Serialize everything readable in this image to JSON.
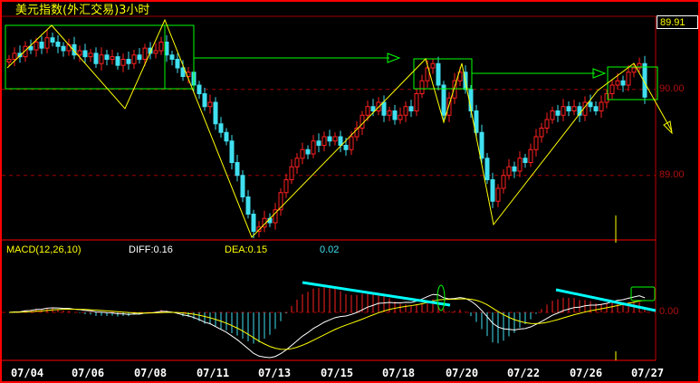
{
  "title": "美元指数(外汇交易)3小时",
  "current_price": "89.91",
  "macd": {
    "label": "MACD(12,26,10)",
    "diff": "DIFF:0.16",
    "dea": "DEA:0.15",
    "macd": "0.02",
    "zero_label": "0.00"
  },
  "colors": {
    "up": "#ff2020",
    "down": "#40e0f0",
    "diff_line": "#ffffff",
    "dea_line": "#ffff00",
    "annotation_box": "#00ff00",
    "trend_line": "#ffff00",
    "macd_trend": "#00ffff",
    "grid": "#a00000"
  },
  "chart_data": {
    "type": "candlestick",
    "title": "美元指数(外汇交易)3小时",
    "price_ticks": [
      {
        "value": 90.0,
        "label": "90.00"
      },
      {
        "value": 89.0,
        "label": "89.00"
      }
    ],
    "ylim": [
      88.25,
      90.85
    ],
    "x_tick_labels": [
      "07/04",
      "07/06",
      "07/08",
      "07/11",
      "07/13",
      "07/15",
      "07/18",
      "07/20",
      "07/22",
      "07/26",
      "07/27"
    ],
    "close": [
      90.35,
      90.42,
      90.38,
      90.5,
      90.46,
      90.55,
      90.48,
      90.6,
      90.55,
      90.5,
      90.45,
      90.52,
      90.4,
      90.45,
      90.38,
      90.42,
      90.3,
      90.4,
      90.35,
      90.38,
      90.28,
      90.35,
      90.3,
      90.4,
      90.35,
      90.48,
      90.42,
      90.45,
      90.55,
      90.4,
      90.35,
      90.25,
      90.15,
      90.2,
      90.05,
      89.95,
      89.8,
      89.85,
      89.6,
      89.5,
      89.4,
      89.15,
      89.0,
      88.75,
      88.55,
      88.35,
      88.4,
      88.5,
      88.45,
      88.6,
      88.8,
      88.95,
      89.1,
      89.2,
      89.3,
      89.25,
      89.4,
      89.35,
      89.45,
      89.4,
      89.45,
      89.35,
      89.3,
      89.45,
      89.55,
      89.7,
      89.8,
      89.75,
      89.85,
      89.7,
      89.75,
      89.65,
      89.7,
      89.8,
      89.75,
      89.95,
      90.1,
      90.25,
      90.3,
      90.05,
      89.7,
      89.9,
      90.1,
      90.2,
      90.0,
      89.75,
      89.5,
      89.2,
      88.95,
      88.7,
      88.85,
      89.0,
      89.1,
      89.05,
      89.2,
      89.15,
      89.3,
      89.45,
      89.55,
      89.65,
      89.75,
      89.7,
      89.8,
      89.75,
      89.8,
      89.7,
      89.85,
      89.8,
      89.75,
      89.85,
      89.95,
      90.05,
      90.1,
      90.05,
      90.2,
      90.25,
      90.3,
      89.91
    ],
    "indicator": {
      "name": "MACD",
      "params": [
        12,
        26,
        10
      ]
    }
  }
}
